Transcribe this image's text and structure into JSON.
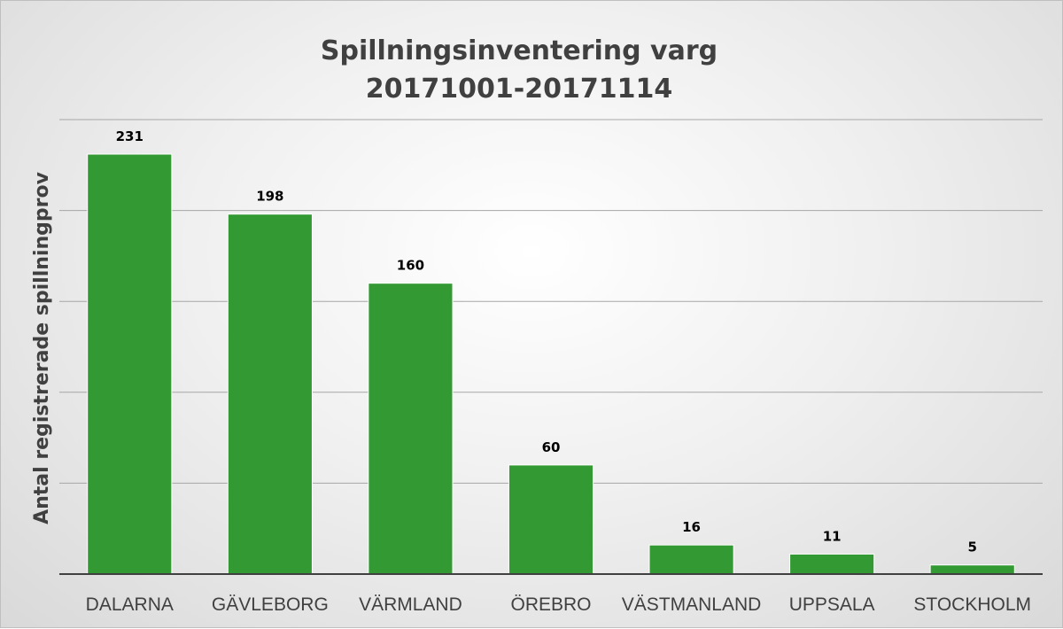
{
  "chart_data": {
    "type": "bar",
    "title_line1": "Spillningsinventering varg",
    "title_line2": "20171001-20171114",
    "xlabel": "",
    "ylabel": "Antal registrerade spillningprov",
    "categories": [
      "DALARNA",
      "GÄVLEBORG",
      "VÄRMLAND",
      "ÖREBRO",
      "VÄSTMANLAND",
      "UPPSALA",
      "STOCKHOLM"
    ],
    "values": [
      231,
      198,
      160,
      60,
      16,
      11,
      5
    ],
    "ylim": [
      0,
      250
    ],
    "grid": true,
    "show_y_tick_labels": false,
    "data_labels": true,
    "colors": {
      "bar": "#339933",
      "bar_edge": "#ffffff",
      "grid": "#a6a6a6",
      "axis": "#404040"
    }
  }
}
